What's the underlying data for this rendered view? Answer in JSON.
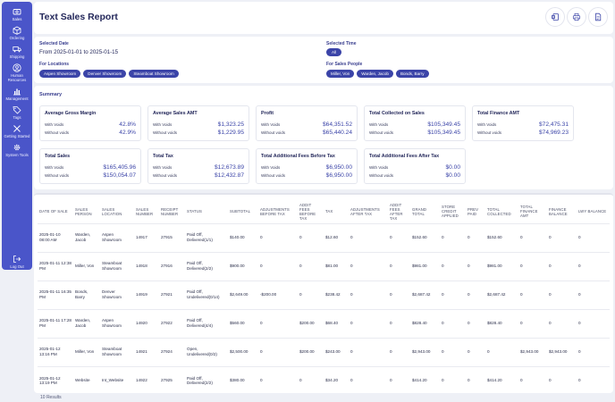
{
  "sidebar": {
    "items": [
      {
        "label": "Sales",
        "icon": "cash-register-icon"
      },
      {
        "label": "Ordering",
        "icon": "box-icon"
      },
      {
        "label": "Shipping",
        "icon": "truck-icon"
      },
      {
        "label": "Human Resources",
        "icon": "user-circle-icon"
      },
      {
        "label": "Management",
        "icon": "bar-chart-icon"
      },
      {
        "label": "Tags",
        "icon": "tags-icon"
      },
      {
        "label": "Getting Started",
        "icon": "tools-icon"
      },
      {
        "label": "System Tools",
        "icon": "gear-icon"
      }
    ],
    "logout": "Log Out"
  },
  "header": {
    "title": "Text Sales Report"
  },
  "filters": {
    "selected_date_label": "Selected Date",
    "selected_date_value": "From 2025-01-01 to 2025-01-15",
    "locations_label": "For Locations",
    "locations": [
      "Aspen Showroom",
      "Denver Showroom",
      "Steamboat Showroom"
    ],
    "selected_time_label": "Selected Time",
    "selected_time": "All",
    "sales_people_label": "For Sales People",
    "sales_people": [
      "Miller, Von",
      "Warden, Jacob",
      "Bonds, Barry"
    ]
  },
  "summary": {
    "title": "Summary",
    "with_voids_label": "With Voids",
    "without_voids_label": "Without voids",
    "cards": [
      {
        "title": "Average Gross Margin",
        "with": "42.8%",
        "without": "42.9%"
      },
      {
        "title": "Average Sales AMT",
        "with": "$1,323.25",
        "without": "$1,229.95"
      },
      {
        "title": "Profit",
        "with": "$64,351.52",
        "without": "$65,440.24"
      },
      {
        "title": "Total Collected on Sales",
        "with": "$105,349.45",
        "without": "$105,349.45"
      },
      {
        "title": "Total Finance AMT",
        "with": "$72,475.31",
        "without": "$74,969.23"
      },
      {
        "title": "Total Sales",
        "with": "$165,405.96",
        "without": "$150,054.07"
      },
      {
        "title": "Total Tax",
        "with": "$12,673.89",
        "without": "$12,432.87"
      },
      {
        "title": "Total Additional Fees Before Tax",
        "with": "$6,950.00",
        "without": "$6,950.00"
      },
      {
        "title": "Total Additional Fees After Tax",
        "with": "$0.00",
        "without": "$0.00"
      }
    ]
  },
  "table": {
    "columns": [
      "DATE OF SALE",
      "SALES PERSON",
      "SALES LOCATION",
      "SALES NUMBER",
      "RECEIPT NUMBER",
      "STATUS",
      "SUBTOTAL",
      "ADJUSTMENTS BEFORE TAX",
      "ADDIT FEES BEFORE TAX",
      "TAX",
      "ADJUSTMENTS AFTER TAX",
      "ADDIT FEES AFTER TAX",
      "GRAND TOTAL",
      "STORE CREDIT APPLIED",
      "PREV PAID",
      "TOTAL COLLECTED",
      "TOTAL FINANCE AMT",
      "FINANCE BALANCE",
      "LWY BALANCE"
    ],
    "rows": [
      [
        "2025-01-10 08:00 AM",
        "Warden, Jacob",
        "Aspen Showroom",
        "14917",
        "27915",
        "Paid Off, Delivered(1/1)",
        "$140.00",
        "0",
        "0",
        "$12.60",
        "0",
        "0",
        "$152.60",
        "0",
        "0",
        "$152.60",
        "0",
        "0",
        "0"
      ],
      [
        "2025-01-11 12:38 PM",
        "Miller, Von",
        "Steamboat Showroom",
        "14918",
        "27916",
        "Paid Off, Delivered(2/2)",
        "$900.00",
        "0",
        "0",
        "$81.00",
        "0",
        "0",
        "$981.00",
        "0",
        "0",
        "$981.00",
        "0",
        "0",
        "0"
      ],
      [
        "2025-01-11 16:35 PM",
        "Bonds, Barry",
        "Denver Showroom",
        "14919",
        "27921",
        "Paid Off, Undelivered(0/14)",
        "$2,649.00",
        "-$200.00",
        "0",
        "$238.42",
        "0",
        "0",
        "$2,687.42",
        "0",
        "0",
        "$2,687.42",
        "0",
        "0",
        "0"
      ],
      [
        "2025-01-11 17:28 PM",
        "Warden, Jacob",
        "Aspen Showroom",
        "14920",
        "27922",
        "Paid Off, Delivered(4/4)",
        "$560.00",
        "0",
        "$200.00",
        "$68.40",
        "0",
        "0",
        "$828.40",
        "0",
        "0",
        "$828.40",
        "0",
        "0",
        "0"
      ],
      [
        "2025-01-12 13:16 PM",
        "Miller, Von",
        "Steamboat Showroom",
        "14921",
        "27924",
        "Open, Undelivered(0/2)",
        "$2,500.00",
        "0",
        "$200.00",
        "$243.00",
        "0",
        "0",
        "$2,943.00",
        "0",
        "0",
        "0",
        "$2,943.00",
        "$2,943.00",
        "0"
      ],
      [
        "2025-01-12 13:19 PM",
        "Website",
        "Int_Website",
        "14922",
        "27925",
        "Paid Off, Delivered(2/2)",
        "$380.00",
        "0",
        "0",
        "$34.20",
        "0",
        "0",
        "$414.20",
        "0",
        "0",
        "$414.20",
        "0",
        "0",
        "0"
      ]
    ],
    "results": "10 Results"
  }
}
